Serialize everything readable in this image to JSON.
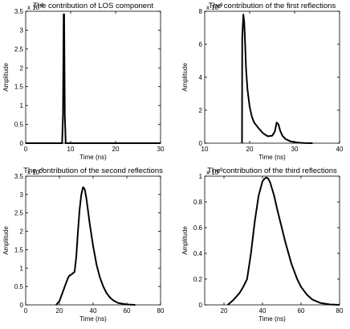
{
  "chart_data": [
    {
      "type": "line",
      "title": "The contribution of LOS component",
      "xlabel": "Time (ns)",
      "ylabel": "Amplitude",
      "exponent_base": "x 10",
      "exponent": "-8",
      "xlim": [
        0,
        30
      ],
      "ylim": [
        0,
        3.5
      ],
      "xticks": [
        0,
        10,
        20,
        30
      ],
      "yticks": [
        0,
        0.5,
        1,
        1.5,
        2,
        2.5,
        3,
        3.5
      ],
      "ytick_labels": [
        "0",
        "0.5",
        "1",
        "1.5",
        "2",
        "2.5",
        "3",
        "3.5"
      ],
      "series": [
        {
          "x": [
            0,
            8.1,
            8.3,
            8.45,
            8.55,
            8.7,
            8.9,
            30
          ],
          "y": [
            0,
            0,
            0.75,
            3.42,
            3.42,
            0.75,
            0,
            0
          ]
        }
      ]
    },
    {
      "type": "line",
      "title": "The contribution of the first reflections",
      "xlabel": "Time (ns)",
      "ylabel": "Amplitude",
      "exponent_base": "x 10",
      "exponent": "-9",
      "xlim": [
        10,
        40
      ],
      "ylim": [
        0,
        8
      ],
      "xticks": [
        10,
        20,
        30,
        40
      ],
      "yticks": [
        0,
        2,
        4,
        6,
        8
      ],
      "ytick_labels": [
        "0",
        "2",
        "4",
        "6",
        "8"
      ],
      "series": [
        {
          "x": [
            18.3,
            18.35,
            18.6,
            18.8,
            19.0,
            19.2,
            19.5,
            20.0,
            20.5,
            21.0,
            22.0,
            23.0,
            24.0,
            25.0,
            25.6,
            26.0,
            26.4,
            26.8,
            27.3,
            28.0,
            29.0,
            30.0,
            31.0,
            32.0,
            34.0
          ],
          "y": [
            0,
            6.4,
            7.8,
            7.3,
            6.0,
            4.5,
            3.3,
            2.2,
            1.6,
            1.25,
            0.9,
            0.6,
            0.42,
            0.45,
            0.7,
            1.25,
            1.15,
            0.75,
            0.45,
            0.25,
            0.12,
            0.06,
            0.03,
            0.01,
            0
          ]
        }
      ]
    },
    {
      "type": "line",
      "title": "The contribution of the second reflections",
      "xlabel": "Time (ns)",
      "ylabel": "Amplitude",
      "exponent_base": "x 10",
      "exponent": "-9",
      "xlim": [
        0,
        80
      ],
      "ylim": [
        0,
        3.5
      ],
      "xticks": [
        0,
        20,
        40,
        60,
        80
      ],
      "yticks": [
        0,
        0.5,
        1,
        1.5,
        2,
        2.5,
        3,
        3.5
      ],
      "ytick_labels": [
        "0",
        "0.5",
        "1",
        "1.5",
        "2",
        "2.5",
        "3",
        "3.5"
      ],
      "series": [
        {
          "x": [
            18,
            20,
            22,
            24,
            25,
            26,
            27,
            28,
            29,
            30,
            31,
            32,
            33,
            34,
            35,
            36,
            37,
            38,
            40,
            42,
            44,
            46,
            48,
            50,
            52,
            55,
            60,
            65
          ],
          "y": [
            0,
            0.1,
            0.35,
            0.6,
            0.72,
            0.8,
            0.82,
            0.86,
            0.9,
            1.3,
            2.0,
            2.6,
            3.0,
            3.2,
            3.15,
            2.9,
            2.55,
            2.2,
            1.6,
            1.1,
            0.75,
            0.5,
            0.32,
            0.2,
            0.12,
            0.05,
            0.01,
            0
          ]
        }
      ]
    },
    {
      "type": "line",
      "title": "The contribution of the third reflections",
      "xlabel": "Time (ns)",
      "ylabel": "Amplitude",
      "exponent_base": "x 10",
      "exponent": "-9",
      "xlim": [
        10,
        80
      ],
      "ylim": [
        0,
        1
      ],
      "xticks": [
        20,
        40,
        60,
        80
      ],
      "yticks": [
        0,
        0.2,
        0.4,
        0.6,
        0.8,
        1
      ],
      "ytick_labels": [
        "0",
        "0.2",
        "0.4",
        "0.6",
        "0.8",
        "1"
      ],
      "series": [
        {
          "x": [
            22,
            25,
            28,
            30,
            32,
            34,
            36,
            38,
            40,
            41,
            42,
            43,
            44,
            46,
            48,
            50,
            52,
            55,
            58,
            60,
            63,
            66,
            70,
            75,
            80
          ],
          "y": [
            0,
            0.04,
            0.09,
            0.14,
            0.2,
            0.4,
            0.65,
            0.85,
            0.96,
            0.98,
            0.99,
            0.98,
            0.95,
            0.85,
            0.72,
            0.6,
            0.48,
            0.32,
            0.2,
            0.14,
            0.08,
            0.04,
            0.015,
            0.003,
            0
          ]
        }
      ]
    }
  ]
}
